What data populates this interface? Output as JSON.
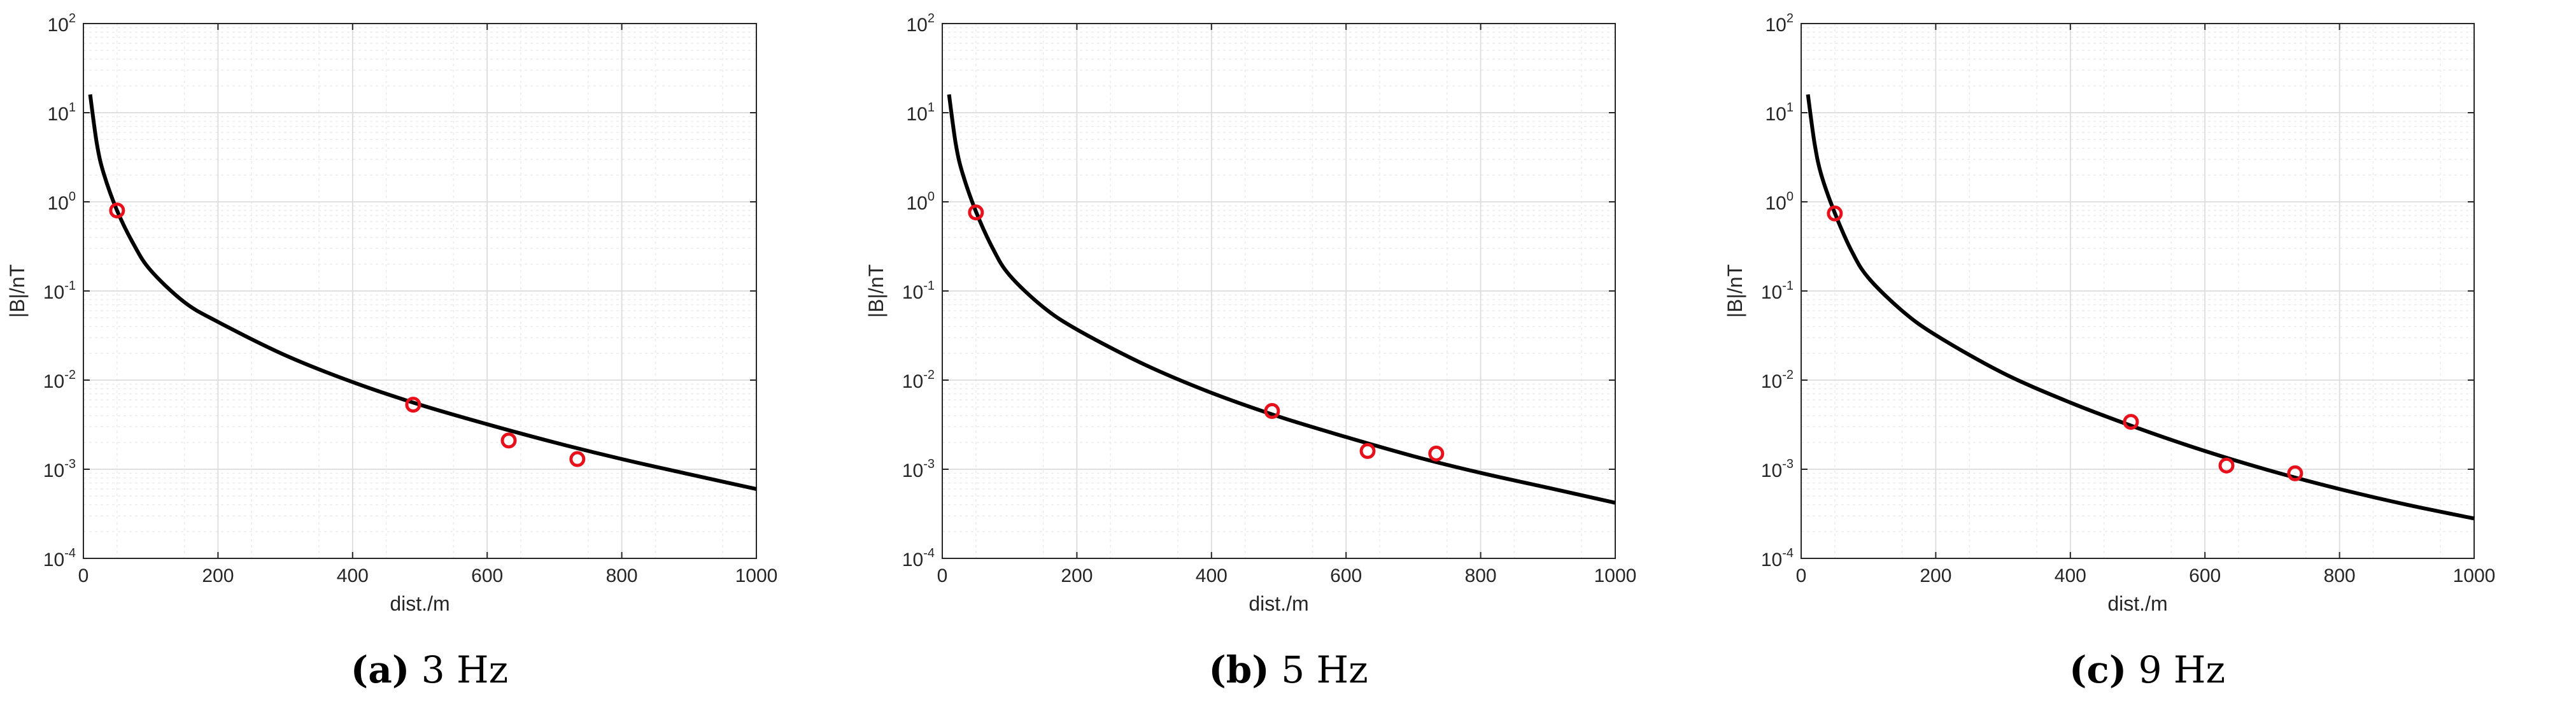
{
  "chart_data": [
    {
      "type": "line",
      "caption_letter": "(a)",
      "caption_text": "3 Hz",
      "xlabel": "dist./m",
      "ylabel": "|B|/nT",
      "xlim": [
        0,
        1000
      ],
      "ylim": [
        0.0001,
        100
      ],
      "yscale": "log",
      "grid": true,
      "xticks": [
        "0",
        "200",
        "400",
        "600",
        "800",
        "1000"
      ],
      "yticks": [
        {
          "value": 0.0001,
          "base": "10",
          "exp": "-4"
        },
        {
          "value": 0.001,
          "base": "10",
          "exp": "-3"
        },
        {
          "value": 0.01,
          "base": "10",
          "exp": "-2"
        },
        {
          "value": 0.1,
          "base": "10",
          "exp": "-1"
        },
        {
          "value": 1,
          "base": "10",
          "exp": "0"
        },
        {
          "value": 10,
          "base": "10",
          "exp": "1"
        },
        {
          "value": 100,
          "base": "10",
          "exp": "2"
        }
      ],
      "series": [
        {
          "style": "line",
          "color": "#000000",
          "x": [
            10,
            20,
            30,
            50,
            75,
            100,
            150,
            200,
            300,
            400,
            500,
            600,
            700,
            800,
            900,
            1000
          ],
          "y": [
            16,
            4.5,
            2.1,
            0.8,
            0.33,
            0.17,
            0.075,
            0.045,
            0.019,
            0.0095,
            0.0053,
            0.0032,
            0.002,
            0.0013,
            0.00088,
            0.0006
          ]
        },
        {
          "style": "markers",
          "color": "#e8101a",
          "x": [
            50,
            490,
            632,
            734
          ],
          "y": [
            0.8,
            0.0053,
            0.0021,
            0.0013
          ]
        }
      ]
    },
    {
      "type": "line",
      "caption_letter": "(b)",
      "caption_text": "5 Hz",
      "xlabel": "dist./m",
      "ylabel": "|B|/nT",
      "xlim": [
        0,
        1000
      ],
      "ylim": [
        0.0001,
        100
      ],
      "yscale": "log",
      "grid": true,
      "xticks": [
        "0",
        "200",
        "400",
        "600",
        "800",
        "1000"
      ],
      "yticks": [
        {
          "value": 0.0001,
          "base": "10",
          "exp": "-4"
        },
        {
          "value": 0.001,
          "base": "10",
          "exp": "-3"
        },
        {
          "value": 0.01,
          "base": "10",
          "exp": "-2"
        },
        {
          "value": 0.1,
          "base": "10",
          "exp": "-1"
        },
        {
          "value": 1,
          "base": "10",
          "exp": "0"
        },
        {
          "value": 10,
          "base": "10",
          "exp": "1"
        },
        {
          "value": 100,
          "base": "10",
          "exp": "2"
        }
      ],
      "series": [
        {
          "style": "line",
          "color": "#000000",
          "x": [
            10,
            20,
            30,
            50,
            75,
            100,
            150,
            200,
            300,
            400,
            500,
            600,
            700,
            800,
            900,
            1000
          ],
          "y": [
            16,
            4.5,
            2.1,
            0.78,
            0.3,
            0.15,
            0.066,
            0.037,
            0.015,
            0.0072,
            0.0039,
            0.0023,
            0.0014,
            0.00091,
            0.00062,
            0.00042
          ]
        },
        {
          "style": "markers",
          "color": "#e8101a",
          "x": [
            50,
            490,
            632,
            734
          ],
          "y": [
            0.76,
            0.0045,
            0.0016,
            0.0015
          ]
        }
      ]
    },
    {
      "type": "line",
      "caption_letter": "(c)",
      "caption_text": "9 Hz",
      "xlabel": "dist./m",
      "ylabel": "|B|/nT",
      "xlim": [
        0,
        1000
      ],
      "ylim": [
        0.0001,
        100
      ],
      "yscale": "log",
      "grid": true,
      "xticks": [
        "0",
        "200",
        "400",
        "600",
        "800",
        "1000"
      ],
      "yticks": [
        {
          "value": 0.0001,
          "base": "10",
          "exp": "-4"
        },
        {
          "value": 0.001,
          "base": "10",
          "exp": "-3"
        },
        {
          "value": 0.01,
          "base": "10",
          "exp": "-2"
        },
        {
          "value": 0.1,
          "base": "10",
          "exp": "-1"
        },
        {
          "value": 1,
          "base": "10",
          "exp": "0"
        },
        {
          "value": 10,
          "base": "10",
          "exp": "1"
        },
        {
          "value": 100,
          "base": "10",
          "exp": "2"
        }
      ],
      "series": [
        {
          "style": "line",
          "color": "#000000",
          "x": [
            10,
            20,
            30,
            50,
            75,
            100,
            150,
            200,
            300,
            400,
            500,
            600,
            700,
            800,
            900,
            1000
          ],
          "y": [
            16,
            4.5,
            2.0,
            0.75,
            0.28,
            0.14,
            0.06,
            0.032,
            0.012,
            0.0056,
            0.0029,
            0.0016,
            0.00095,
            0.0006,
            0.0004,
            0.00028
          ]
        },
        {
          "style": "markers",
          "color": "#e8101a",
          "x": [
            50,
            490,
            632,
            734
          ],
          "y": [
            0.74,
            0.0034,
            0.0011,
            0.0009
          ]
        }
      ]
    }
  ]
}
